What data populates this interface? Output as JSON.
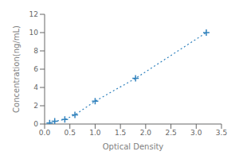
{
  "chart_data": {
    "type": "line",
    "x": [
      0.1,
      0.2,
      0.4,
      0.6,
      1.0,
      1.8,
      3.2
    ],
    "values": [
      0.1,
      0.3,
      0.5,
      1.0,
      2.5,
      5.0,
      10.0
    ],
    "xlabel": "Optical Density",
    "ylabel": "Concentration(ng/mL)",
    "xlim": [
      0,
      3.5
    ],
    "ylim": [
      0,
      12
    ],
    "xticks": [
      {
        "value": 0,
        "label": "0.0"
      },
      0.5,
      {
        "value": 1.0,
        "label": "1.0"
      },
      1.5,
      {
        "value": 2.0,
        "label": "2.0"
      },
      2.5,
      {
        "value": 3.0,
        "label": "3.0"
      },
      3.5
    ],
    "yticks": [
      0,
      2,
      4,
      6,
      8,
      10,
      12
    ],
    "marker": "+",
    "line_style": "dotted",
    "grid": false
  }
}
